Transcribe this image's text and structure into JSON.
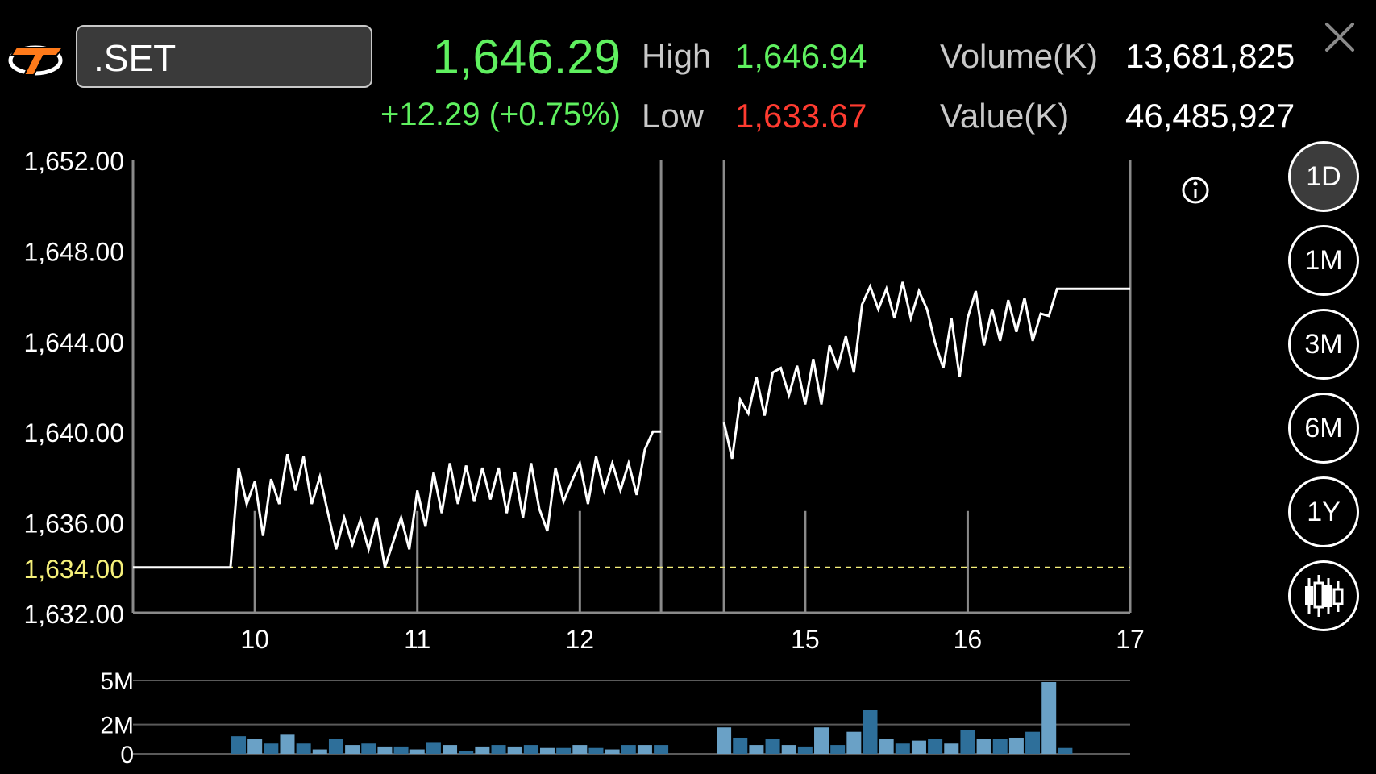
{
  "header": {
    "symbol": ".SET",
    "last": "1,646.29",
    "change": "+12.29 (+0.75%)",
    "high_label": "High",
    "high_value": "1,646.94",
    "low_label": "Low",
    "low_value": "1,633.67",
    "volume_label": "Volume(K)",
    "volume_value": "13,681,825",
    "value_label": "Value(K)",
    "value_value": "46,485,927"
  },
  "timeframes": [
    {
      "label": "1D",
      "active": true
    },
    {
      "label": "1M",
      "active": false
    },
    {
      "label": "3M",
      "active": false
    },
    {
      "label": "6M",
      "active": false
    },
    {
      "label": "1Y",
      "active": false
    }
  ],
  "icons": [
    "logo-icon",
    "close-icon",
    "info-icon",
    "candlestick-icon"
  ],
  "colors": {
    "up": "#5ff05f",
    "down": "#ff3b30",
    "line": "#ffffff",
    "prev_close": "#f5f07a",
    "volume_bar": "#2e6f9a",
    "volume_bar_light": "#6aa1c6"
  },
  "chart_data": {
    "type": "line",
    "ylim": [
      1632,
      1652
    ],
    "yticks": [
      "1,652.00",
      "1,648.00",
      "1,644.00",
      "1,640.00",
      "1,636.00",
      "1,632.00"
    ],
    "ytick_values": [
      1652,
      1648,
      1644,
      1640,
      1636,
      1632
    ],
    "reference_line": {
      "value": 1634,
      "label": "1,634.00"
    },
    "xlim": [
      9.25,
      17
    ],
    "xticks": [
      {
        "value": 10,
        "label": "10"
      },
      {
        "value": 11,
        "label": "11"
      },
      {
        "value": 12,
        "label": "12"
      },
      {
        "value": 15,
        "label": "15"
      },
      {
        "value": 16,
        "label": "16"
      },
      {
        "value": 17,
        "label": "17"
      }
    ],
    "session_breaks": [
      12.5,
      14.5
    ],
    "series": [
      {
        "points": [
          [
            9.25,
            1634.0
          ],
          [
            9.85,
            1634.0
          ],
          [
            9.9,
            1638.4
          ],
          [
            9.95,
            1636.8
          ],
          [
            10.0,
            1637.8
          ],
          [
            10.05,
            1635.4
          ],
          [
            10.1,
            1637.9
          ],
          [
            10.15,
            1636.8
          ],
          [
            10.2,
            1639.0
          ],
          [
            10.25,
            1637.4
          ],
          [
            10.3,
            1638.9
          ],
          [
            10.35,
            1636.8
          ],
          [
            10.4,
            1638.0
          ],
          [
            10.45,
            1636.4
          ],
          [
            10.5,
            1634.8
          ],
          [
            10.55,
            1636.2
          ],
          [
            10.6,
            1635.0
          ],
          [
            10.65,
            1636.1
          ],
          [
            10.7,
            1634.8
          ],
          [
            10.75,
            1636.2
          ],
          [
            10.8,
            1634.0
          ],
          [
            10.85,
            1635.1
          ],
          [
            10.9,
            1636.2
          ],
          [
            10.95,
            1634.8
          ],
          [
            11.0,
            1637.4
          ],
          [
            11.05,
            1635.8
          ],
          [
            11.1,
            1638.2
          ],
          [
            11.15,
            1636.4
          ],
          [
            11.2,
            1638.6
          ],
          [
            11.25,
            1636.8
          ],
          [
            11.3,
            1638.5
          ],
          [
            11.35,
            1636.9
          ],
          [
            11.4,
            1638.4
          ],
          [
            11.45,
            1637.0
          ],
          [
            11.5,
            1638.4
          ],
          [
            11.55,
            1636.4
          ],
          [
            11.6,
            1638.2
          ],
          [
            11.65,
            1636.2
          ],
          [
            11.7,
            1638.6
          ],
          [
            11.75,
            1636.6
          ],
          [
            11.8,
            1635.6
          ],
          [
            11.85,
            1638.4
          ],
          [
            11.9,
            1636.9
          ],
          [
            11.95,
            1637.8
          ],
          [
            12.0,
            1638.6
          ],
          [
            12.05,
            1636.8
          ],
          [
            12.1,
            1638.9
          ],
          [
            12.15,
            1637.4
          ],
          [
            12.2,
            1638.6
          ],
          [
            12.25,
            1637.4
          ],
          [
            12.3,
            1638.6
          ],
          [
            12.35,
            1637.2
          ],
          [
            12.4,
            1639.2
          ],
          [
            12.45,
            1640.0
          ],
          [
            12.5,
            1640.0
          ]
        ]
      },
      {
        "points": [
          [
            14.5,
            1640.4
          ],
          [
            14.55,
            1638.8
          ],
          [
            14.6,
            1641.4
          ],
          [
            14.65,
            1640.8
          ],
          [
            14.7,
            1642.4
          ],
          [
            14.75,
            1640.7
          ],
          [
            14.8,
            1642.6
          ],
          [
            14.85,
            1642.8
          ],
          [
            14.9,
            1641.6
          ],
          [
            14.95,
            1642.9
          ],
          [
            15.0,
            1641.2
          ],
          [
            15.05,
            1643.2
          ],
          [
            15.1,
            1641.2
          ],
          [
            15.15,
            1643.8
          ],
          [
            15.2,
            1642.8
          ],
          [
            15.25,
            1644.2
          ],
          [
            15.3,
            1642.6
          ],
          [
            15.35,
            1645.6
          ],
          [
            15.4,
            1646.4
          ],
          [
            15.45,
            1645.4
          ],
          [
            15.5,
            1646.3
          ],
          [
            15.55,
            1645.0
          ],
          [
            15.6,
            1646.6
          ],
          [
            15.65,
            1645.0
          ],
          [
            15.7,
            1646.2
          ],
          [
            15.75,
            1645.4
          ],
          [
            15.8,
            1643.9
          ],
          [
            15.85,
            1642.8
          ],
          [
            15.9,
            1645.0
          ],
          [
            15.95,
            1642.4
          ],
          [
            16.0,
            1645.0
          ],
          [
            16.05,
            1646.2
          ],
          [
            16.1,
            1643.8
          ],
          [
            16.15,
            1645.4
          ],
          [
            16.2,
            1644.0
          ],
          [
            16.25,
            1645.8
          ],
          [
            16.3,
            1644.4
          ],
          [
            16.35,
            1645.9
          ],
          [
            16.4,
            1644.0
          ],
          [
            16.45,
            1645.2
          ],
          [
            16.5,
            1645.1
          ],
          [
            16.55,
            1646.3
          ],
          [
            17.0,
            1646.3
          ]
        ]
      }
    ],
    "volume": {
      "yticks": [
        "5M",
        "2M",
        "0"
      ],
      "ytick_values": [
        5,
        2,
        0
      ],
      "ylim": [
        0,
        5
      ],
      "unit": "M",
      "bars": [
        [
          9.9,
          1.2
        ],
        [
          10.0,
          1.0
        ],
        [
          10.1,
          0.7
        ],
        [
          10.2,
          1.3
        ],
        [
          10.3,
          0.7
        ],
        [
          10.4,
          0.3
        ],
        [
          10.5,
          1.0
        ],
        [
          10.6,
          0.6
        ],
        [
          10.7,
          0.7
        ],
        [
          10.8,
          0.5
        ],
        [
          10.9,
          0.5
        ],
        [
          11.0,
          0.3
        ],
        [
          11.1,
          0.8
        ],
        [
          11.2,
          0.6
        ],
        [
          11.3,
          0.2
        ],
        [
          11.4,
          0.5
        ],
        [
          11.5,
          0.6
        ],
        [
          11.6,
          0.5
        ],
        [
          11.7,
          0.6
        ],
        [
          11.8,
          0.4
        ],
        [
          11.9,
          0.4
        ],
        [
          12.0,
          0.6
        ],
        [
          12.1,
          0.4
        ],
        [
          12.2,
          0.3
        ],
        [
          12.3,
          0.6
        ],
        [
          12.4,
          0.6
        ],
        [
          12.5,
          0.6
        ],
        [
          14.5,
          1.8
        ],
        [
          14.6,
          1.1
        ],
        [
          14.7,
          0.6
        ],
        [
          14.8,
          1.0
        ],
        [
          14.9,
          0.6
        ],
        [
          15.0,
          0.5
        ],
        [
          15.1,
          1.8
        ],
        [
          15.2,
          0.6
        ],
        [
          15.3,
          1.5
        ],
        [
          15.4,
          3.0
        ],
        [
          15.5,
          1.0
        ],
        [
          15.6,
          0.7
        ],
        [
          15.7,
          0.9
        ],
        [
          15.8,
          1.0
        ],
        [
          15.9,
          0.7
        ],
        [
          16.0,
          1.6
        ],
        [
          16.1,
          1.0
        ],
        [
          16.2,
          1.0
        ],
        [
          16.3,
          1.1
        ],
        [
          16.4,
          1.5
        ],
        [
          16.5,
          5.5
        ],
        [
          16.6,
          0.4
        ]
      ]
    }
  }
}
